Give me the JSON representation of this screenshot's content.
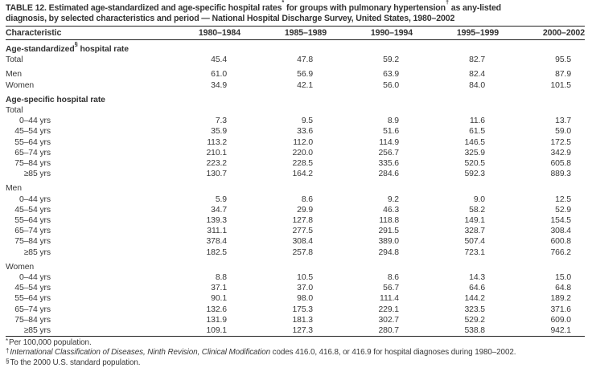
{
  "title": {
    "line1_parts": [
      {
        "text": "TABLE 12. Estimated age-standardized and age-specific hospital rates"
      },
      {
        "sup": "*"
      },
      {
        "text": " for groups with pulmonary hypertension"
      },
      {
        "sup": "†"
      },
      {
        "text": " as any-listed"
      }
    ],
    "line2": "diagnosis, by selected characteristics and period — National Hospital Discharge Survey, United States, 1980–2002"
  },
  "table": {
    "columns": [
      "Characteristic",
      "1980–1984",
      "1985–1989",
      "1990–1994",
      "1995–1999",
      "2000–2002"
    ],
    "sections": [
      {
        "header_parts": [
          {
            "text": "Age-standardized"
          },
          {
            "sup": "§"
          },
          {
            "text": " hospital rate"
          }
        ],
        "groups": [
          {
            "rows": [
              {
                "label": "Total",
                "indent": false,
                "values": [
                  "45.4",
                  "47.8",
                  "59.2",
                  "82.7",
                  "95.5"
                ]
              }
            ]
          },
          {
            "rows": [
              {
                "label": "Men",
                "indent": false,
                "values": [
                  "61.0",
                  "56.9",
                  "63.9",
                  "82.4",
                  "87.9"
                ]
              },
              {
                "label": "Women",
                "indent": false,
                "values": [
                  "34.9",
                  "42.1",
                  "56.0",
                  "84.0",
                  "101.5"
                ]
              }
            ]
          }
        ]
      },
      {
        "header_parts": [
          {
            "text": "Age-specific hospital rate"
          }
        ],
        "groups": [
          {
            "label": "Total",
            "rows": [
              {
                "label": "0–44 yrs",
                "indent": true,
                "values": [
                  "7.3",
                  "9.5",
                  "8.9",
                  "11.6",
                  "13.7"
                ]
              },
              {
                "label": "45–54 yrs",
                "indent": true,
                "values": [
                  "35.9",
                  "33.6",
                  "51.6",
                  "61.5",
                  "59.0"
                ]
              },
              {
                "label": "55–64 yrs",
                "indent": true,
                "values": [
                  "113.2",
                  "112.0",
                  "114.9",
                  "146.5",
                  "172.5"
                ]
              },
              {
                "label": "65–74 yrs",
                "indent": true,
                "values": [
                  "210.1",
                  "220.0",
                  "256.7",
                  "325.9",
                  "342.9"
                ]
              },
              {
                "label": "75–84 yrs",
                "indent": true,
                "values": [
                  "223.2",
                  "228.5",
                  "335.6",
                  "520.5",
                  "605.8"
                ]
              },
              {
                "label": "≥85 yrs",
                "indent": true,
                "values": [
                  "130.7",
                  "164.2",
                  "284.6",
                  "592.3",
                  "889.3"
                ]
              }
            ]
          },
          {
            "label": "Men",
            "rows": [
              {
                "label": "0–44 yrs",
                "indent": true,
                "values": [
                  "5.9",
                  "8.6",
                  "9.2",
                  "9.0",
                  "12.5"
                ]
              },
              {
                "label": "45–54 yrs",
                "indent": true,
                "values": [
                  "34.7",
                  "29.9",
                  "46.3",
                  "58.2",
                  "52.9"
                ]
              },
              {
                "label": "55–64 yrs",
                "indent": true,
                "values": [
                  "139.3",
                  "127.8",
                  "118.8",
                  "149.1",
                  "154.5"
                ]
              },
              {
                "label": "65–74 yrs",
                "indent": true,
                "values": [
                  "311.1",
                  "277.5",
                  "291.5",
                  "328.7",
                  "308.4"
                ]
              },
              {
                "label": "75–84 yrs",
                "indent": true,
                "values": [
                  "378.4",
                  "308.4",
                  "389.0",
                  "507.4",
                  "600.8"
                ]
              },
              {
                "label": "≥85 yrs",
                "indent": true,
                "values": [
                  "182.5",
                  "257.8",
                  "294.8",
                  "723.1",
                  "766.2"
                ]
              }
            ]
          },
          {
            "label": "Women",
            "rows": [
              {
                "label": "0–44 yrs",
                "indent": true,
                "values": [
                  "8.8",
                  "10.5",
                  "8.6",
                  "14.3",
                  "15.0"
                ]
              },
              {
                "label": "45–54 yrs",
                "indent": true,
                "values": [
                  "37.1",
                  "37.0",
                  "56.7",
                  "64.6",
                  "64.8"
                ]
              },
              {
                "label": "55–64 yrs",
                "indent": true,
                "values": [
                  "90.1",
                  "98.0",
                  "111.4",
                  "144.2",
                  "189.2"
                ]
              },
              {
                "label": "65–74 yrs",
                "indent": true,
                "values": [
                  "132.6",
                  "175.3",
                  "229.1",
                  "323.5",
                  "371.6"
                ]
              },
              {
                "label": "75–84 yrs",
                "indent": true,
                "values": [
                  "131.9",
                  "181.3",
                  "302.7",
                  "529.2",
                  "609.0"
                ]
              },
              {
                "label": "≥85 yrs",
                "indent": true,
                "values": [
                  "109.1",
                  "127.3",
                  "280.7",
                  "538.8",
                  "942.1"
                ]
              }
            ]
          }
        ]
      }
    ]
  },
  "footnotes": [
    {
      "sup": "*",
      "italic": "",
      "text": "Per 100,000 population."
    },
    {
      "sup": "†",
      "italic": "International Classification of Diseases, Ninth Revision, Clinical Modification",
      "text": " codes 416.0, 416.8, or 416.9 for hospital diagnoses during 1980–2002."
    },
    {
      "sup": "§",
      "italic": "",
      "text": "To the 2000 U.S. standard population."
    }
  ],
  "colors": {
    "text": "#383838",
    "heading_text": "#333333",
    "rule": "#222222",
    "background": "#ffffff"
  }
}
